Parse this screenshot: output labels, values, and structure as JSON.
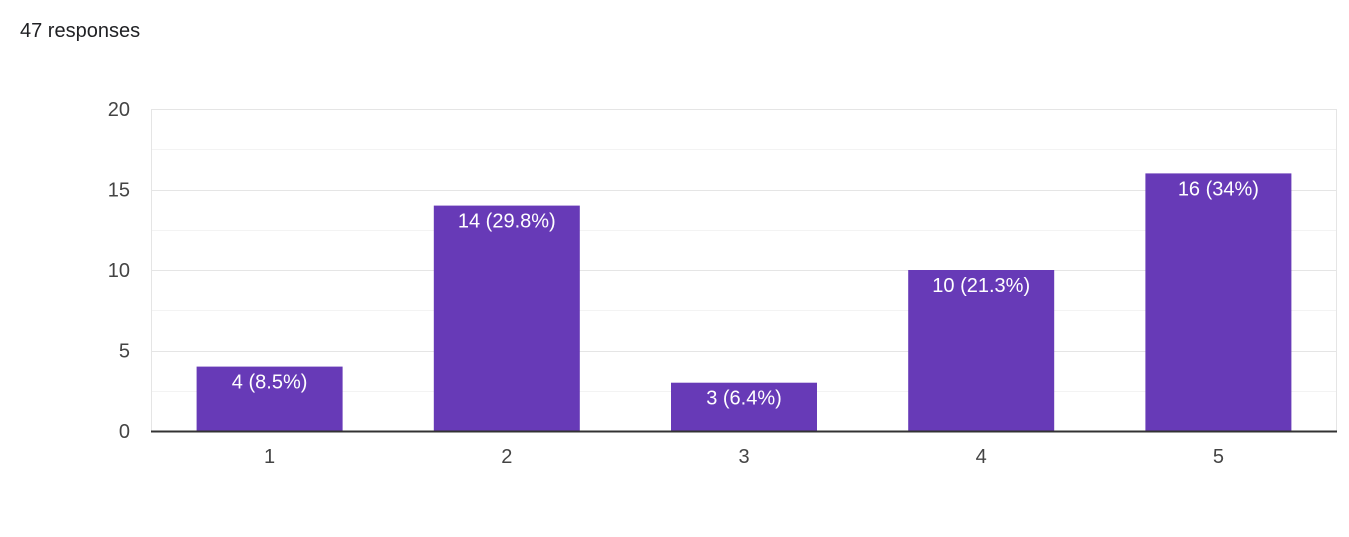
{
  "summary": {
    "responses_text": "47 responses"
  },
  "chart_data": {
    "type": "bar",
    "categories": [
      "1",
      "2",
      "3",
      "4",
      "5"
    ],
    "values": [
      4,
      14,
      3,
      10,
      16
    ],
    "data_labels": [
      "4 (8.5%)",
      "14 (29.8%)",
      "3 (6.4%)",
      "10 (21.3%)",
      "16 (34%)"
    ],
    "y_ticks": [
      0,
      5,
      10,
      15,
      20
    ],
    "ylim": [
      0,
      20
    ],
    "grid": true,
    "bar_color": "#673ab7",
    "grid_color": "#e5e5e5",
    "minor_grid_color": "#f3f3f3",
    "axis_color": "#333333"
  }
}
